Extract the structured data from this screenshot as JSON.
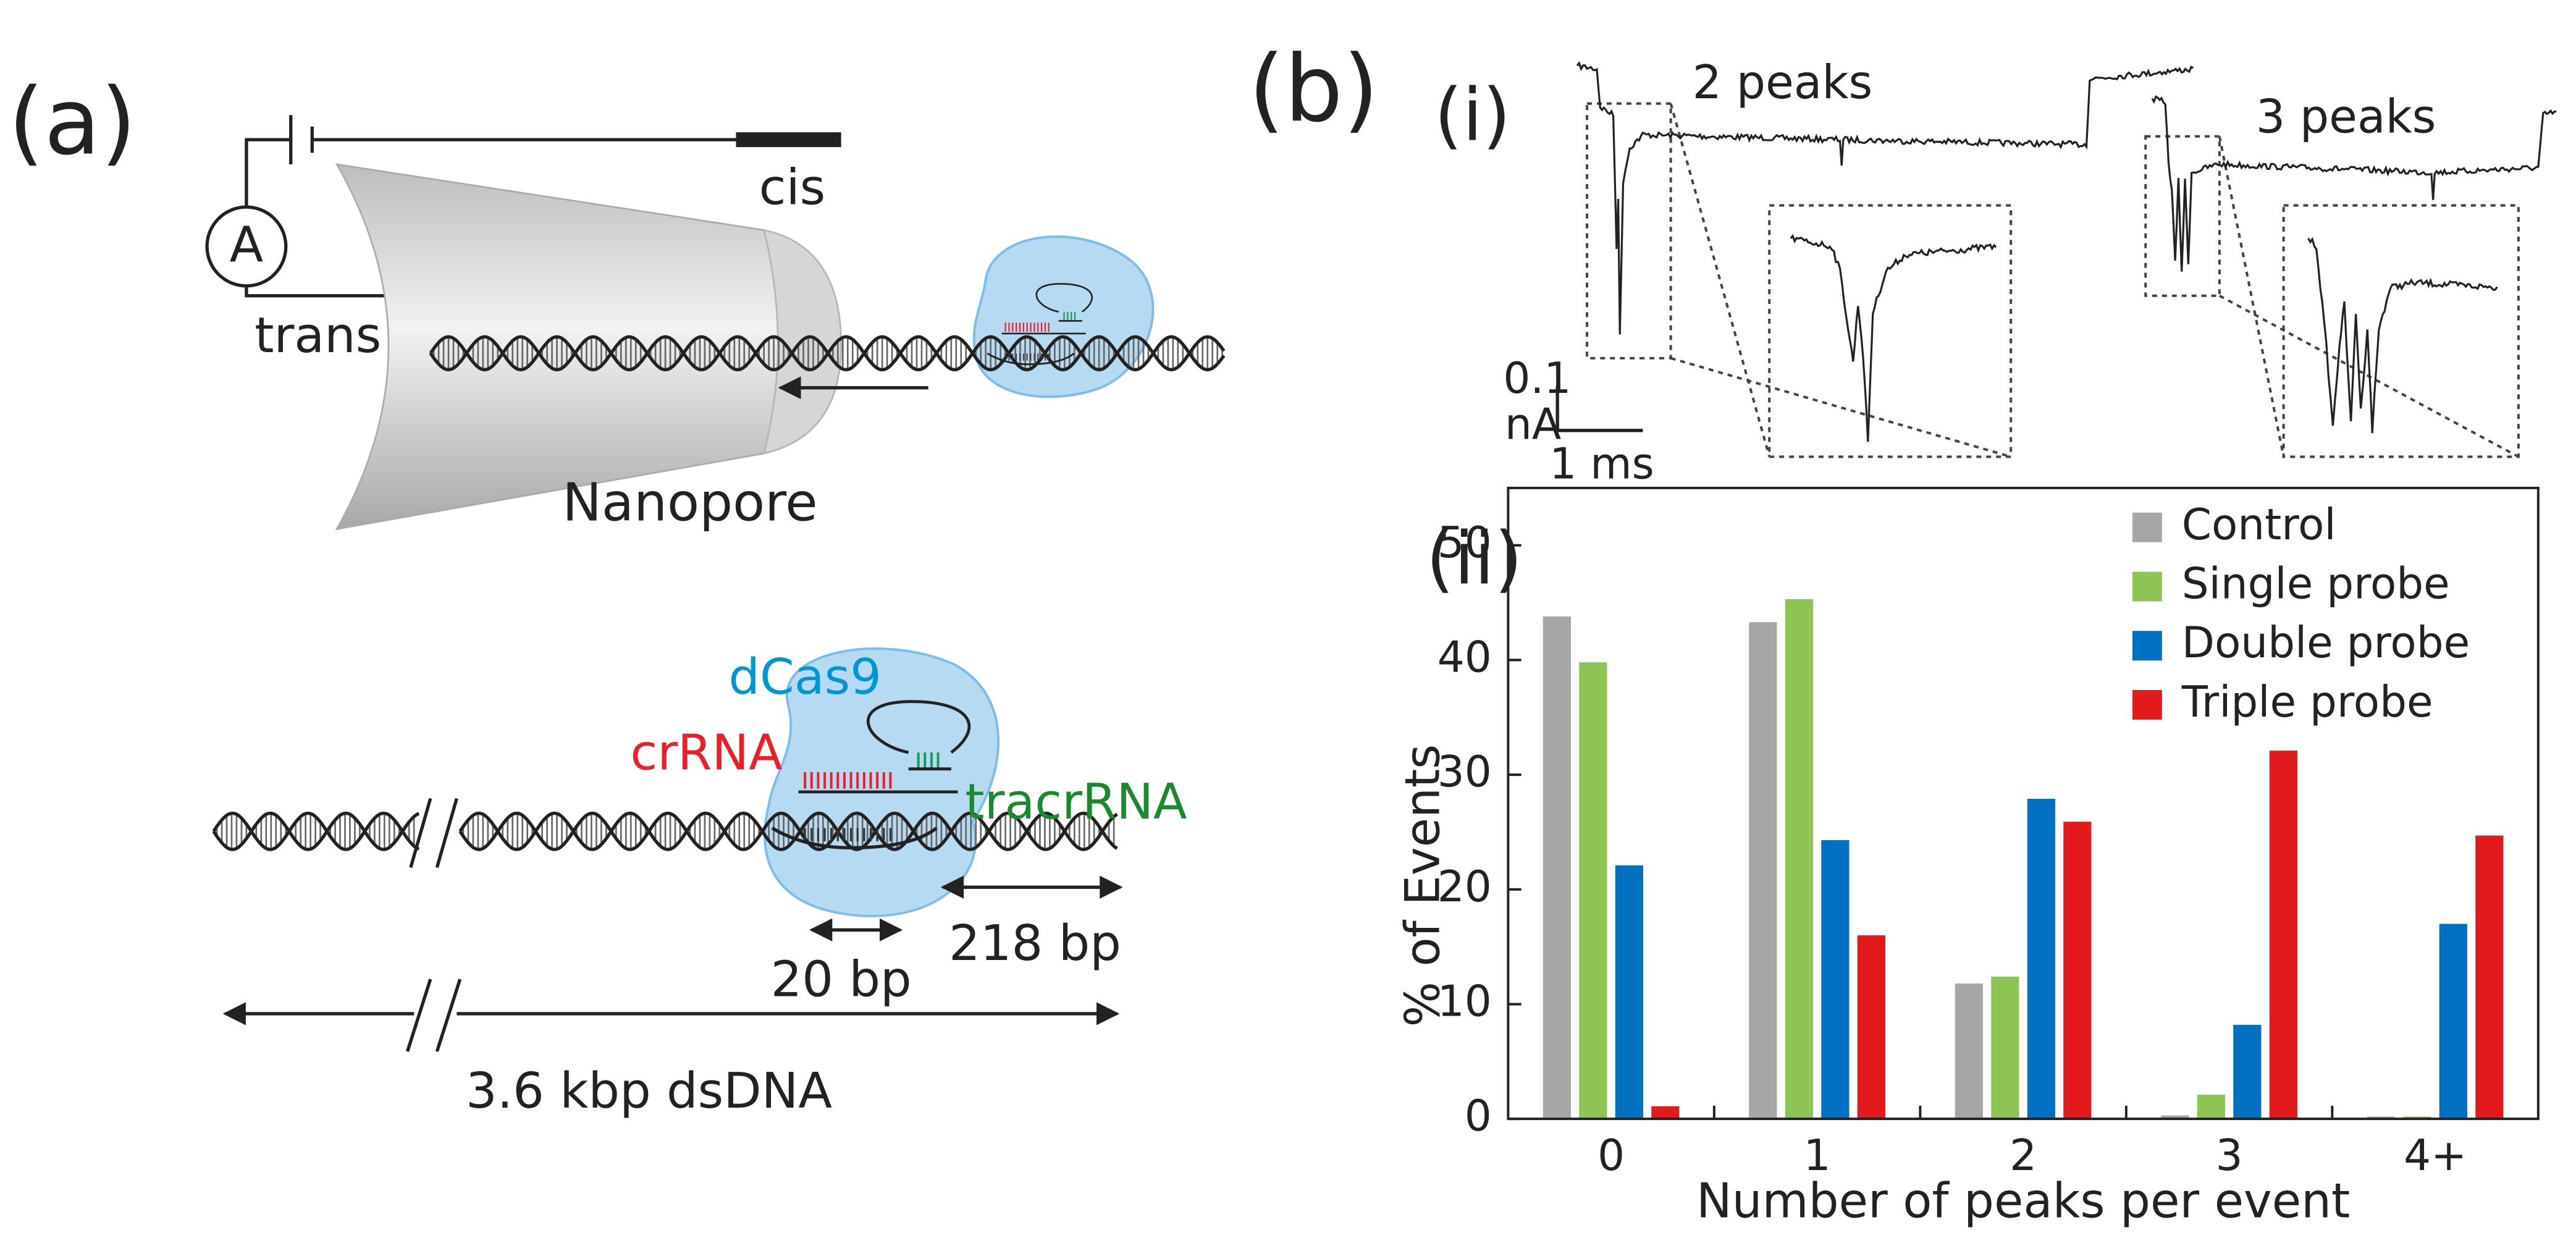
{
  "panel_a": {
    "label": "(a)",
    "cis": "cis",
    "trans": "trans",
    "ammeter": "A",
    "nanopore": "Nanopore",
    "dcas9": "dCas9",
    "crrna": "crRNA",
    "tracrrna": "tracrRNA",
    "span_20": "20 bp",
    "span_218": "218 bp",
    "span_total": "3.6 kbp dsDNA"
  },
  "panel_b": {
    "label": "(b)",
    "traces": {
      "label": "(i)",
      "peaks2": "2 peaks",
      "peaks3": "3 peaks",
      "scale_current": "0.1",
      "scale_unit": "nA",
      "scale_time": "1 ms"
    }
  },
  "chart_data": {
    "type": "bar",
    "panel": "(ii)",
    "xlabel": "Number of peaks per event",
    "ylabel": "% of Events",
    "categories": [
      "0",
      "1",
      "2",
      "3",
      "4+"
    ],
    "series": [
      {
        "name": "Control",
        "color": "#a6a6a6",
        "values": [
          43.8,
          43.3,
          11.8,
          0.3,
          0.2
        ]
      },
      {
        "name": "Single probe",
        "color": "#8dc454",
        "values": [
          39.8,
          45.3,
          12.4,
          2.1,
          0.2
        ]
      },
      {
        "name": "Double probe",
        "color": "#0070c0",
        "values": [
          22.1,
          24.3,
          27.9,
          8.2,
          17.0
        ]
      },
      {
        "name": "Triple probe",
        "color": "#e31a1c",
        "values": [
          1.1,
          16.0,
          25.9,
          32.1,
          24.7
        ]
      }
    ],
    "ylim": [
      0,
      55
    ],
    "yticks": [
      0,
      10,
      20,
      30,
      40,
      50
    ],
    "legend": "upper right",
    "grid": false
  }
}
